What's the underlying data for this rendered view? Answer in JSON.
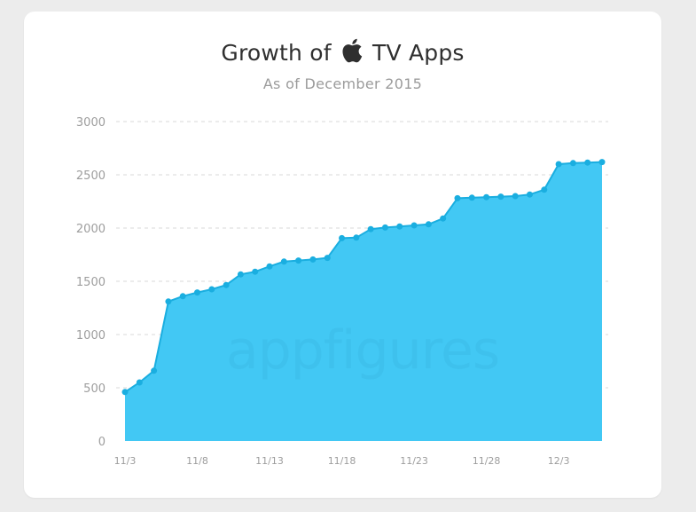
{
  "chart_data": {
    "type": "area",
    "title_before": "Growth of",
    "title_after": "TV Apps",
    "subtitle": "As of December 2015",
    "watermark": "appfigures",
    "ylim": [
      0,
      3000
    ],
    "y_ticks": [
      "0",
      "500",
      "1000",
      "1500",
      "2000",
      "2500",
      "3000"
    ],
    "x_tick_labels": [
      {
        "index": 0,
        "label": "11/3"
      },
      {
        "index": 5,
        "label": "11/8"
      },
      {
        "index": 10,
        "label": "11/13"
      },
      {
        "index": 15,
        "label": "11/18"
      },
      {
        "index": 20,
        "label": "11/23"
      },
      {
        "index": 25,
        "label": "11/28"
      },
      {
        "index": 30,
        "label": "12/3"
      }
    ],
    "x": [
      "11/3",
      "11/4",
      "11/5",
      "11/6",
      "11/7",
      "11/8",
      "11/9",
      "11/10",
      "11/11",
      "11/12",
      "11/13",
      "11/14",
      "11/15",
      "11/16",
      "11/17",
      "11/18",
      "11/19",
      "11/20",
      "11/21",
      "11/22",
      "11/23",
      "11/24",
      "11/25",
      "11/26",
      "11/27",
      "11/28",
      "11/29",
      "11/30",
      "12/1",
      "12/2",
      "12/3",
      "12/4",
      "12/5",
      "12/6"
    ],
    "values": [
      460,
      550,
      660,
      1310,
      1360,
      1395,
      1425,
      1465,
      1565,
      1590,
      1640,
      1685,
      1695,
      1705,
      1720,
      1905,
      1910,
      1990,
      2005,
      2015,
      2025,
      2035,
      2090,
      2280,
      2285,
      2290,
      2295,
      2300,
      2315,
      2360,
      2600,
      2610,
      2615,
      2620
    ],
    "grid": true,
    "colors": {
      "fill": "#42c8f4",
      "line": "#1aaee0",
      "point": "#1aaee0",
      "grid": "#d9d9d9",
      "watermark": "#3bbde8"
    }
  }
}
